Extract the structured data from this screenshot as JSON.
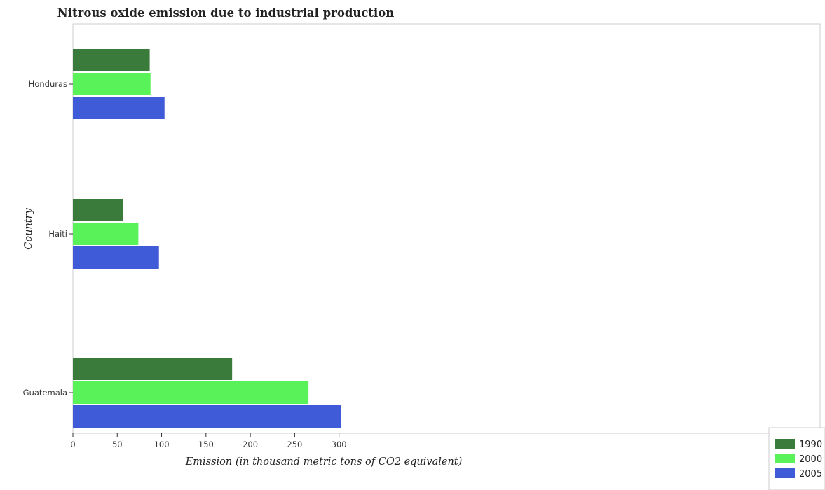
{
  "chart_data": {
    "type": "bar",
    "orientation": "horizontal",
    "title": "Nitrous oxide emission due to industrial production",
    "xlabel": "Emission (in thousand metric tons of CO2 equivalent)",
    "ylabel": "Country",
    "categories": [
      "Guatemala",
      "Haiti",
      "Honduras"
    ],
    "series": [
      {
        "name": "1990",
        "color": "#3a7a3a",
        "values": [
          179.5,
          56.6,
          86.6
        ]
      },
      {
        "name": "2000",
        "color": "#59f259",
        "values": [
          265.6,
          73.8,
          87.5
        ]
      },
      {
        "name": "2005",
        "color": "#3f5bd8",
        "values": [
          302.1,
          97.0,
          103.3
        ]
      }
    ],
    "xlim": [
      0,
      320
    ],
    "xticks": [
      0,
      50,
      100,
      150,
      200,
      250,
      300
    ],
    "grid": false,
    "legend_position": "bottom-right"
  }
}
